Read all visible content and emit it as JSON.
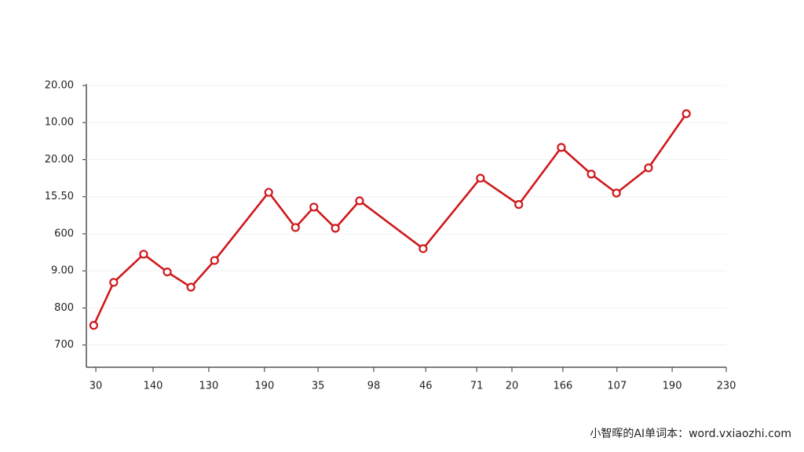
{
  "chart_data": {
    "type": "line",
    "x": [
      -0.04,
      0.34,
      0.91,
      1.36,
      1.81,
      2.26,
      3.29,
      3.8,
      4.15,
      4.56,
      5.02,
      6.23,
      7.32,
      8.05,
      8.86,
      9.43,
      9.91,
      10.52,
      11.24
    ],
    "series": [
      {
        "color": "#d0181c",
        "values": [
          0.53,
          1.69,
          2.45,
          1.97,
          1.56,
          2.28,
          4.12,
          3.17,
          3.72,
          3.15,
          3.89,
          2.6,
          4.5,
          3.79,
          5.33,
          4.61,
          4.1,
          4.78,
          6.24
        ]
      }
    ],
    "xlim": [
      -0.18,
      12
    ],
    "xticks": [
      {
        "value": 0,
        "label": "30"
      },
      {
        "value": 1.09,
        "label": "140"
      },
      {
        "value": 2.15,
        "label": "130"
      },
      {
        "value": 3.21,
        "label": "190"
      },
      {
        "value": 4.23,
        "label": "35"
      },
      {
        "value": 5.29,
        "label": "98"
      },
      {
        "value": 6.28,
        "label": "46"
      },
      {
        "value": 7.25,
        "label": "71"
      },
      {
        "value": 7.92,
        "label": "20"
      },
      {
        "value": 8.89,
        "label": "166"
      },
      {
        "value": 9.92,
        "label": "107"
      },
      {
        "value": 10.97,
        "label": "190"
      },
      {
        "value": 12,
        "label": "230"
      }
    ],
    "ylim": [
      -0.6,
      7
    ],
    "yticks": [
      {
        "value": 0,
        "label": "700"
      },
      {
        "value": 1,
        "label": "800"
      },
      {
        "value": 2,
        "label": "9.00"
      },
      {
        "value": 3,
        "label": "600"
      },
      {
        "value": 4,
        "label": "15.50"
      },
      {
        "value": 5,
        "label": "20.00"
      },
      {
        "value": 6,
        "label": "10.00"
      },
      {
        "value": 7,
        "label": "20.00"
      }
    ],
    "grid": true,
    "watermark": "小智晖的AI单词本：word.vxiaozhi.com"
  }
}
